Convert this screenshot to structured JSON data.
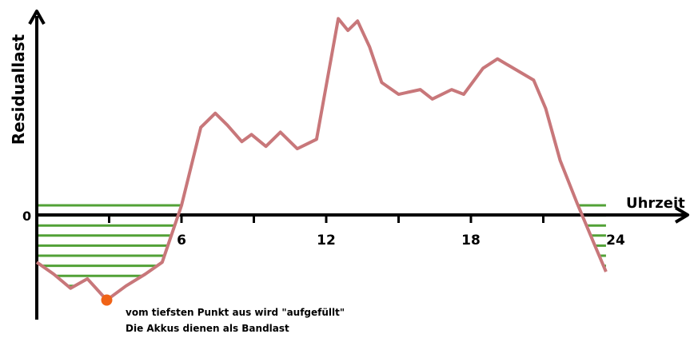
{
  "chart_data": {
    "type": "line",
    "ylabel": "Residuallast",
    "xlabel": "Uhrzeit",
    "y_zero_label": "0",
    "xlim": [
      0,
      24
    ],
    "ylim": [
      -3.7,
      9.5
    ],
    "x_tick_labels": [
      "6",
      "12",
      "18",
      "24"
    ],
    "series": [
      {
        "color": "#c8777a",
        "x": [
          0,
          0.7,
          1.4,
          2.1,
          2.9,
          3.7,
          4.5,
          5.2,
          6,
          6.8,
          7.4,
          7.9,
          8.5,
          8.9,
          9.5,
          10.1,
          10.8,
          11.6,
          12.5,
          12.9,
          13.3,
          13.8,
          14.3,
          15,
          15.9,
          16.4,
          17.2,
          17.7,
          18.5,
          19.1,
          19.6,
          20.6,
          21.1,
          21.7,
          22.4,
          23.1,
          23.6
        ],
        "y": [
          -2,
          -2.5,
          -3.1,
          -2.7,
          -3.6,
          -3,
          -2.5,
          -2,
          0.4,
          3.7,
          4.3,
          3.8,
          3.1,
          3.4,
          2.9,
          3.5,
          2.8,
          3.2,
          8.3,
          7.8,
          8.2,
          7.1,
          5.6,
          5.1,
          5.3,
          4.9,
          5.3,
          5.1,
          6.2,
          6.6,
          6.3,
          5.7,
          4.5,
          2.3,
          0.5,
          -1.2,
          -2.4
        ]
      }
    ],
    "fill": {
      "color": "#52a137",
      "description": "horizontal hatch lines filling the area below 0 under the curve"
    },
    "marker": {
      "color": "#f06317",
      "x": 2.9,
      "y": -3.6
    },
    "annotations": [
      "vom tiefsten Punkt aus wird \"aufgefüllt\"",
      "Die Akkus dienen als Bandlast"
    ]
  }
}
